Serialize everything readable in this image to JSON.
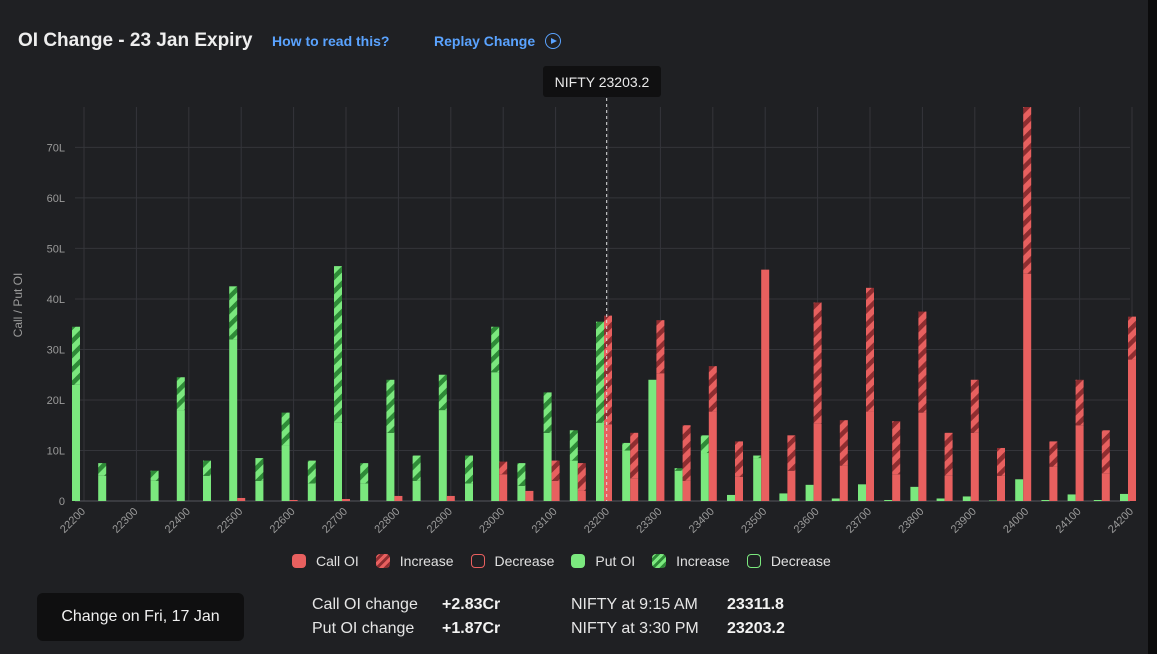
{
  "header": {
    "title": "OI Change - 23 Jan Expiry",
    "how_link": "How to read this?",
    "replay_link": "Replay Change"
  },
  "tooltip": "NIFTY 23203.2",
  "colors": {
    "call": "#e8605f",
    "put": "#7be87e",
    "call_dark": "#8e2d30",
    "put_dark": "#2e8a37",
    "background": "#1f2023",
    "grid": "#34353a"
  },
  "legend": [
    {
      "label": "Call OI",
      "kind": "call-solid"
    },
    {
      "label": "Increase",
      "kind": "call-stripe"
    },
    {
      "label": "Decrease",
      "kind": "call-outline"
    },
    {
      "label": "Put OI",
      "kind": "put-solid"
    },
    {
      "label": "Increase",
      "kind": "put-stripe"
    },
    {
      "label": "Decrease",
      "kind": "put-outline"
    }
  ],
  "footer": {
    "change_button": "Change on Fri, 17 Jan",
    "call_change_label": "Call OI change",
    "call_change_value": "+2.83Cr",
    "put_change_label": "Put OI change",
    "put_change_value": "+1.87Cr",
    "nifty_open_label": "NIFTY at 9:15 AM",
    "nifty_open_value": "23311.8",
    "nifty_close_label": "NIFTY at 3:30 PM",
    "nifty_close_value": "23203.2"
  },
  "chart_data": {
    "type": "bar",
    "ylabel": "Call / Put OI",
    "ylim": [
      0,
      78
    ],
    "yticks": [
      0,
      10,
      20,
      30,
      40,
      50,
      60,
      70
    ],
    "ytick_labels": [
      "0",
      "10L",
      "20L",
      "30L",
      "40L",
      "50L",
      "60L",
      "70L"
    ],
    "x_tick_labels": [
      "22200",
      "22300",
      "22400",
      "22500",
      "22600",
      "22700",
      "22800",
      "22900",
      "23000",
      "23100",
      "23200",
      "23300",
      "23400",
      "23500",
      "23600",
      "23700",
      "23800",
      "23900",
      "24000",
      "24100",
      "24200"
    ],
    "spot_marker": 23203.2,
    "grid": true,
    "strikes": [
      22200,
      22250,
      22300,
      22350,
      22400,
      22450,
      22500,
      22550,
      22600,
      22650,
      22700,
      22750,
      22800,
      22850,
      22900,
      22950,
      23000,
      23050,
      23100,
      23150,
      23200,
      23250,
      23300,
      23350,
      23400,
      23450,
      23500,
      23550,
      23600,
      23650,
      23700,
      23750,
      23800,
      23850,
      23900,
      23950,
      24000,
      24050,
      24100,
      24150,
      24200
    ],
    "put_oi": [
      34.5,
      7.5,
      0,
      6,
      24.5,
      8,
      42.5,
      8.5,
      17.5,
      8,
      46.5,
      7.5,
      24,
      9,
      25,
      9,
      34.5,
      7.5,
      21.5,
      14,
      35.5,
      11.5,
      24,
      6.5,
      13,
      1.2,
      9,
      1.5,
      3.2,
      0.5,
      3.3,
      0.2,
      2.8,
      0.5,
      0.9,
      0.1,
      4.3,
      0.2,
      1.3,
      0.2,
      1.4
    ],
    "put_increase": [
      11.5,
      2.5,
      0,
      2,
      6.5,
      3,
      10.5,
      4.5,
      6.5,
      4.5,
      31,
      4,
      10.5,
      5,
      7,
      5.5,
      9,
      4.5,
      8,
      6,
      20,
      1.5,
      0,
      0.5,
      3.5,
      0,
      0.5,
      0,
      0,
      0,
      0,
      0,
      0,
      0,
      0,
      0,
      0,
      0,
      0,
      0,
      0
    ],
    "call_oi": [
      0,
      0,
      0,
      0,
      0,
      0,
      0.6,
      0,
      0.2,
      0,
      0.4,
      0,
      1,
      0,
      1,
      0,
      7.8,
      2,
      8,
      7.5,
      36.7,
      13.5,
      35.8,
      15,
      26.7,
      11.8,
      45.8,
      13,
      39.3,
      16,
      42.2,
      15.8,
      37.5,
      13.5,
      24,
      10.5,
      78,
      11.8,
      24,
      14,
      36.5
    ],
    "call_increase": [
      0,
      0,
      0,
      0,
      0,
      0,
      0,
      0,
      0,
      0,
      0,
      0,
      0,
      0,
      0,
      0,
      2.5,
      0,
      4,
      5.5,
      21.5,
      9,
      10.5,
      11,
      9,
      7,
      0,
      7,
      24,
      9,
      24.5,
      10.5,
      20,
      8.5,
      10.5,
      5.5,
      33,
      5,
      9,
      8.5,
      8.5
    ]
  }
}
